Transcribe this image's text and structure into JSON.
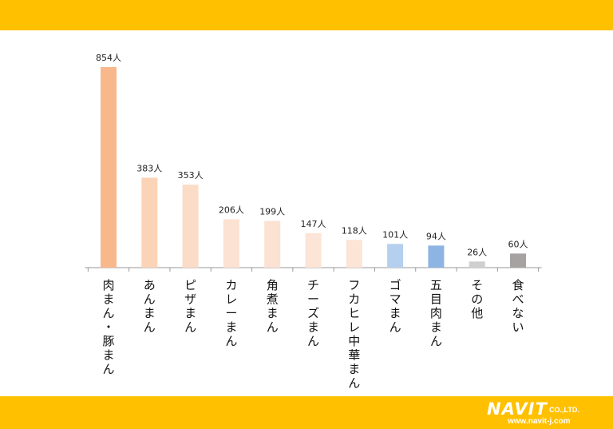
{
  "chart_data": {
    "type": "bar",
    "categories": [
      "肉まん・豚まん",
      "あんまん",
      "ピザまん",
      "カレーまん",
      "角煮まん",
      "チーズまん",
      "フカヒレ中華まん",
      "ゴマまん",
      "五目肉まん",
      "その他",
      "食べない"
    ],
    "values": [
      854,
      383,
      353,
      206,
      199,
      147,
      118,
      101,
      94,
      26,
      60
    ],
    "data_labels": [
      "854人",
      "383人",
      "353人",
      "206人",
      "199人",
      "147人",
      "118人",
      "101人",
      "94人",
      "26人",
      "60人"
    ],
    "colors": [
      "#f8b88c",
      "#fbd3b6",
      "#fbdcc6",
      "#fce2d2",
      "#fce2d2",
      "#fce4d6",
      "#fce4d6",
      "#b5d0ef",
      "#8db4e2",
      "#cfcfcf",
      "#a6a2a2"
    ],
    "ylim": [
      0,
      900
    ],
    "title": "",
    "xlabel": "",
    "ylabel": ""
  },
  "branding": {
    "logo_text": "NAVIT",
    "company_suffix": "CO.,LTD.",
    "url": "www.navit-j.com"
  }
}
